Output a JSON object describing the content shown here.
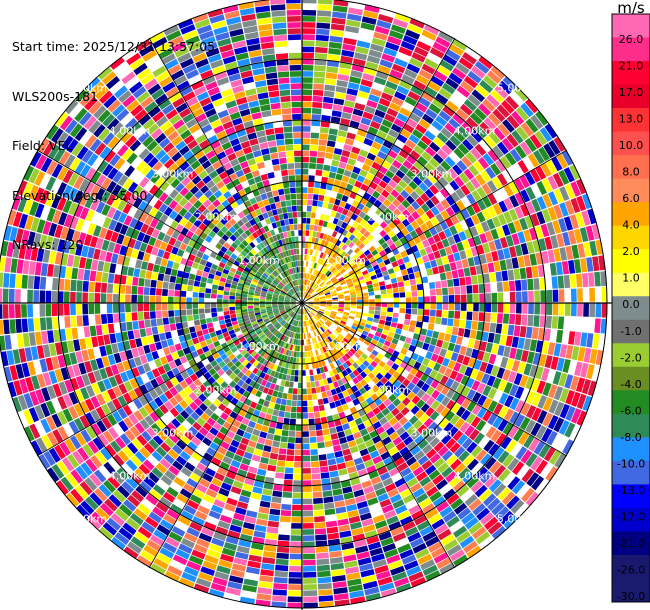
{
  "header": {
    "start_time": "Start time: 2025/12/31 13:57:05",
    "instrument": "WLS200s-181",
    "field": "Field: VEL",
    "elevation": "Elevation(deg): 35.00",
    "nrays": "NRays: 120"
  },
  "chart_data": {
    "type": "heatmap",
    "projection": "polar-ppi",
    "field": "VEL",
    "units": "m/s",
    "n_rays": 120,
    "range_rings_km": [
      1,
      2,
      3,
      4,
      5
    ],
    "ring_labels": [
      "1.00km",
      "2.00km",
      "3.00km",
      "4.00km",
      "5.00km"
    ],
    "colorbar": {
      "unit_label": "m/s",
      "ticks": [
        "26.0",
        "21.0",
        "17.0",
        "13.0",
        "10.0",
        "8.0",
        "6.0",
        "4.0",
        "2.0",
        "1.0",
        "0.0",
        "-1.0",
        "-2.0",
        "-4.0",
        "-6.0",
        "-8.0",
        "-10.0",
        "-13.0",
        "-17.0",
        "-21.0",
        "-26.0",
        "-30.0"
      ],
      "colors": [
        "#ff69b4",
        "#ff2e8a",
        "#ff0033",
        "#e8002a",
        "#ff3333",
        "#ff5050",
        "#ff7050",
        "#ff8c5a",
        "#ffa500",
        "#ffd700",
        "#ffff00",
        "#ffff66",
        "#7f8c8d",
        "#707070",
        "#9acd32",
        "#6b8e23",
        "#228b22",
        "#2e8b57",
        "#1e90ff",
        "#4169e1",
        "#0000ff",
        "#0000cd",
        "#000080",
        "#191970",
        "#1a1a6e"
      ]
    },
    "colors": {
      "near_negative": [
        "#228b22",
        "#2e8b57",
        "#6b8e23",
        "#9acd32",
        "#3cb371",
        "#707070"
      ],
      "near_positive": [
        "#ffff00",
        "#ffd700",
        "#ffa500",
        "#ff8c00",
        "#ffffff"
      ],
      "far_noise": [
        "#ff1493",
        "#ff69b4",
        "#0000cd",
        "#000080",
        "#ff0033",
        "#ffff00",
        "#228b22",
        "#7f8c8d",
        "#ff7f50",
        "#4169e1",
        "#9acd32",
        "#ffa500",
        "#ffffff",
        "#2e8b57",
        "#dc143c",
        "#1e90ff"
      ]
    }
  }
}
